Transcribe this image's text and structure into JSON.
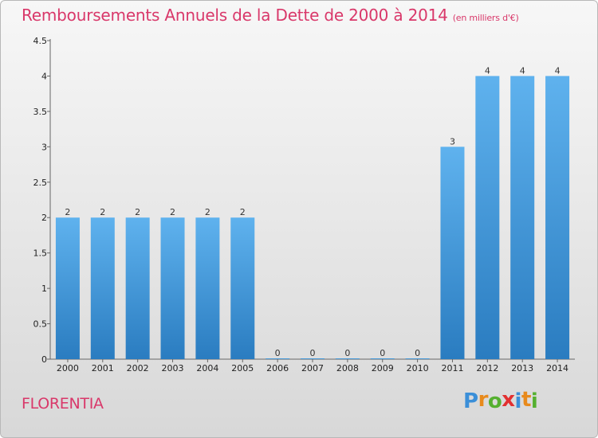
{
  "header": {
    "title": "Remboursements Annuels de la Dette de 2000 à 2014",
    "subtitle": "(en milliers d'€)"
  },
  "footer": {
    "commune": "FLORENTIA",
    "brand": "Proxiti"
  },
  "brand_letters": [
    {
      "ch": "P",
      "color": "#3b8fd8"
    },
    {
      "ch": "r",
      "color": "#e88a1c"
    },
    {
      "ch": "o",
      "color": "#55b030"
    },
    {
      "ch": "x",
      "color": "#e23030"
    },
    {
      "ch": "i",
      "color": "#3b8fd8"
    },
    {
      "ch": "t",
      "color": "#e88a1c"
    },
    {
      "ch": "i",
      "color": "#55b030"
    }
  ],
  "colors": {
    "title": "#d9386a",
    "bar_light": "#5fb2ee",
    "bar_dark": "#2a7cc0"
  },
  "chart_data": {
    "type": "bar",
    "title": "Remboursements Annuels de la Dette de 2000 à 2014",
    "xlabel": "",
    "ylabel": "",
    "categories": [
      "2000",
      "2001",
      "2002",
      "2003",
      "2004",
      "2005",
      "2006",
      "2007",
      "2008",
      "2009",
      "2010",
      "2011",
      "2012",
      "2013",
      "2014"
    ],
    "values": [
      2,
      2,
      2,
      2,
      2,
      2,
      0,
      0,
      0,
      0,
      0,
      3,
      4,
      4,
      4
    ],
    "ylim": [
      0,
      4.5
    ],
    "yticks": [
      {
        "v": 0,
        "label": "0"
      },
      {
        "v": 0.5,
        "label": "0.5"
      },
      {
        "v": 1,
        "label": "1"
      },
      {
        "v": 1.5,
        "label": "1.5"
      },
      {
        "v": 2,
        "label": "2"
      },
      {
        "v": 2.5,
        "label": "2.5"
      },
      {
        "v": 3,
        "label": "3"
      },
      {
        "v": 3.5,
        "label": "3.5"
      },
      {
        "v": 4,
        "label": "4"
      },
      {
        "v": 4.5,
        "label": "4.5"
      }
    ],
    "grid": false
  }
}
